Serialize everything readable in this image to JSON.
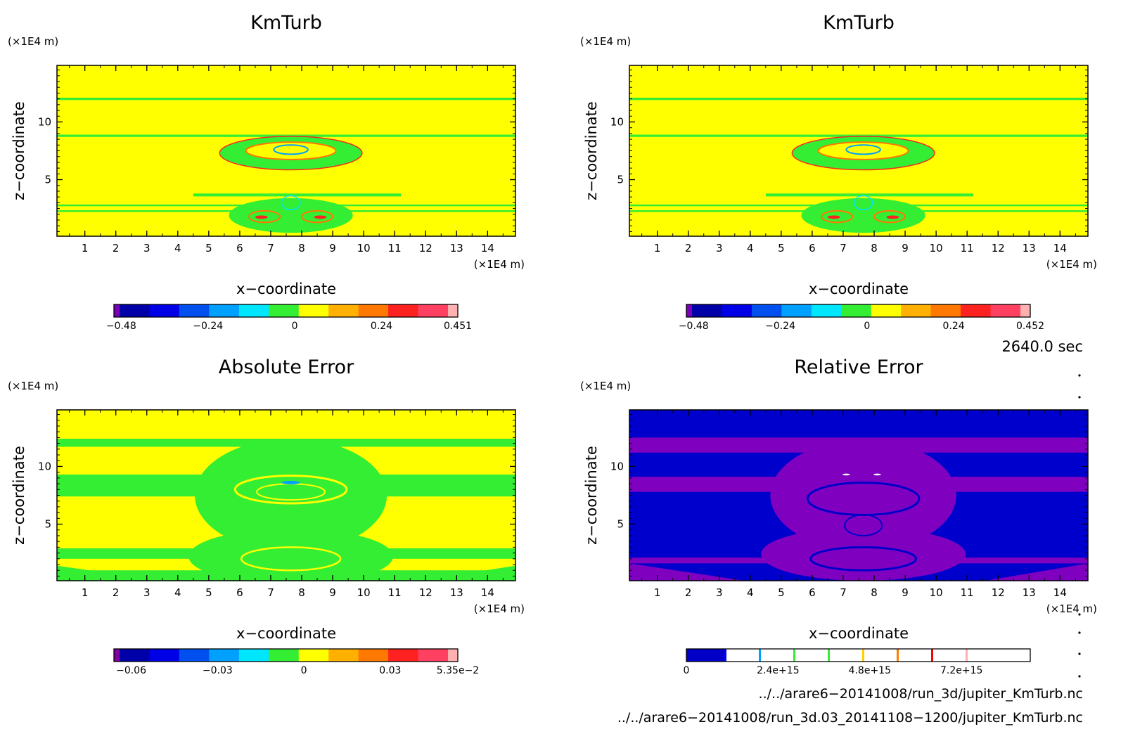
{
  "panels": [
    {
      "title": "KmTurb",
      "xlabel": "x−coordinate",
      "ylabel": "z−coordinate",
      "x_unit": "(×1E4 m)",
      "z_unit": "(×1E4 m)",
      "x_ticks": [
        "1",
        "2",
        "3",
        "4",
        "5",
        "6",
        "7",
        "8",
        "9",
        "10",
        "11",
        "12",
        "13",
        "14"
      ],
      "z_ticks": [
        "5",
        "10"
      ],
      "colorbar_ticks": [
        "−0.48",
        "−0.24",
        "0",
        "0.24",
        "0.451"
      ],
      "background": "#ffff00",
      "pattern": "field"
    },
    {
      "title": "KmTurb",
      "xlabel": "x−coordinate",
      "ylabel": "z−coordinate",
      "x_unit": "(×1E4 m)",
      "z_unit": "(×1E4 m)",
      "x_ticks": [
        "1",
        "2",
        "3",
        "4",
        "5",
        "6",
        "7",
        "8",
        "9",
        "10",
        "11",
        "12",
        "13",
        "14"
      ],
      "z_ticks": [
        "5",
        "10"
      ],
      "colorbar_ticks": [
        "−0.48",
        "−0.24",
        "0",
        "0.24",
        "0.452"
      ],
      "background": "#ffff00",
      "pattern": "field"
    },
    {
      "title": "Absolute Error",
      "xlabel": "x−coordinate",
      "ylabel": "z−coordinate",
      "x_unit": "(×1E4 m)",
      "z_unit": "(×1E4 m)",
      "x_ticks": [
        "1",
        "2",
        "3",
        "4",
        "5",
        "6",
        "7",
        "8",
        "9",
        "10",
        "11",
        "12",
        "13",
        "14"
      ],
      "z_ticks": [
        "5",
        "10"
      ],
      "colorbar_ticks": [
        "−0.06",
        "−0.03",
        "0",
        "0.03",
        "5.35e−2"
      ],
      "background": "#ffff00",
      "pattern": "abs"
    },
    {
      "title": "Relative Error",
      "xlabel": "x−coordinate",
      "ylabel": "z−coordinate",
      "x_unit": "(×1E4 m)",
      "z_unit": "(×1E4 m)",
      "x_ticks": [
        "1",
        "2",
        "3",
        "4",
        "5",
        "6",
        "7",
        "8",
        "9",
        "10",
        "11",
        "12",
        "13",
        "14"
      ],
      "z_ticks": [
        "5",
        "10"
      ],
      "colorbar_ticks": [
        "0",
        "2.4e+15",
        "4.8e+15",
        "7.2e+15"
      ],
      "background": "#0000cc",
      "pattern": "rel"
    }
  ],
  "colors": {
    "field_palette": [
      "#7a00b8",
      "#0000a8",
      "#0000e6",
      "#0050f0",
      "#00a0ff",
      "#00e6ff",
      "#33ee33",
      "#ffff00",
      "#ffb000",
      "#ff7800",
      "#ff2020",
      "#ff4060",
      "#ffb0b0"
    ],
    "abs_palette": [
      "#8000a0",
      "#0000a8",
      "#0000e6",
      "#0050f0",
      "#00a0ff",
      "#00e6ff",
      "#33ee33",
      "#ffff00",
      "#ffb000",
      "#ff7800",
      "#ff2020",
      "#ff4060",
      "#ffb0b0"
    ],
    "rel_palette": [
      "#0000c8",
      "#0000ff",
      "#00a0ff",
      "#33ee33",
      "#33ee33",
      "#ffd000",
      "#ff8000",
      "#ff0000",
      "#ffb0b0"
    ],
    "green": "#33ee33",
    "yellow": "#ffff00",
    "purple": "#8000c0",
    "navy": "#0000c8"
  },
  "time_label": "2640.0 sec",
  "footer": {
    "file1": "../../arare6−20141008/run_3d/jupiter_KmTurb.nc",
    "file2": "../../arare6−20141008/run_3d.03_20141108−1200/jupiter_KmTurb.nc"
  },
  "chart_data": [
    {
      "type": "heatmap",
      "title": "KmTurb",
      "xlabel": "x−coordinate",
      "ylabel": "z−coordinate",
      "x_unit": "(×1E4 m)",
      "z_unit": "(×1E4 m)",
      "xlim": [
        0.1,
        14.9
      ],
      "ylim": [
        0.1,
        14.9
      ],
      "colorbar": {
        "ticks": [
          -0.48,
          -0.24,
          0,
          0.24,
          0.451
        ],
        "min": -0.5,
        "max": 0.451
      }
    },
    {
      "type": "heatmap",
      "title": "KmTurb",
      "xlabel": "x−coordinate",
      "ylabel": "z−coordinate",
      "x_unit": "(×1E4 m)",
      "z_unit": "(×1E4 m)",
      "xlim": [
        0.1,
        14.9
      ],
      "ylim": [
        0.1,
        14.9
      ],
      "colorbar": {
        "ticks": [
          -0.48,
          -0.24,
          0,
          0.24,
          0.452
        ],
        "min": -0.5,
        "max": 0.452
      }
    },
    {
      "type": "heatmap",
      "title": "Absolute Error",
      "xlabel": "x−coordinate",
      "ylabel": "z−coordinate",
      "x_unit": "(×1E4 m)",
      "z_unit": "(×1E4 m)",
      "xlim": [
        0.1,
        14.9
      ],
      "ylim": [
        0.1,
        14.9
      ],
      "colorbar": {
        "ticks": [
          -0.06,
          -0.03,
          0,
          0.03,
          0.0535
        ],
        "min": -0.066,
        "max": 0.0535
      }
    },
    {
      "type": "heatmap",
      "title": "Relative Error",
      "xlabel": "x−coordinate",
      "ylabel": "z−coordinate",
      "x_unit": "(×1E4 m)",
      "z_unit": "(×1E4 m)",
      "xlim": [
        0.1,
        14.9
      ],
      "ylim": [
        0.1,
        14.9
      ],
      "colorbar": {
        "ticks": [
          0,
          2400000000000000.0,
          4800000000000000.0,
          7200000000000000.0
        ],
        "min": 0,
        "max": 9000000000000000.0
      }
    }
  ]
}
